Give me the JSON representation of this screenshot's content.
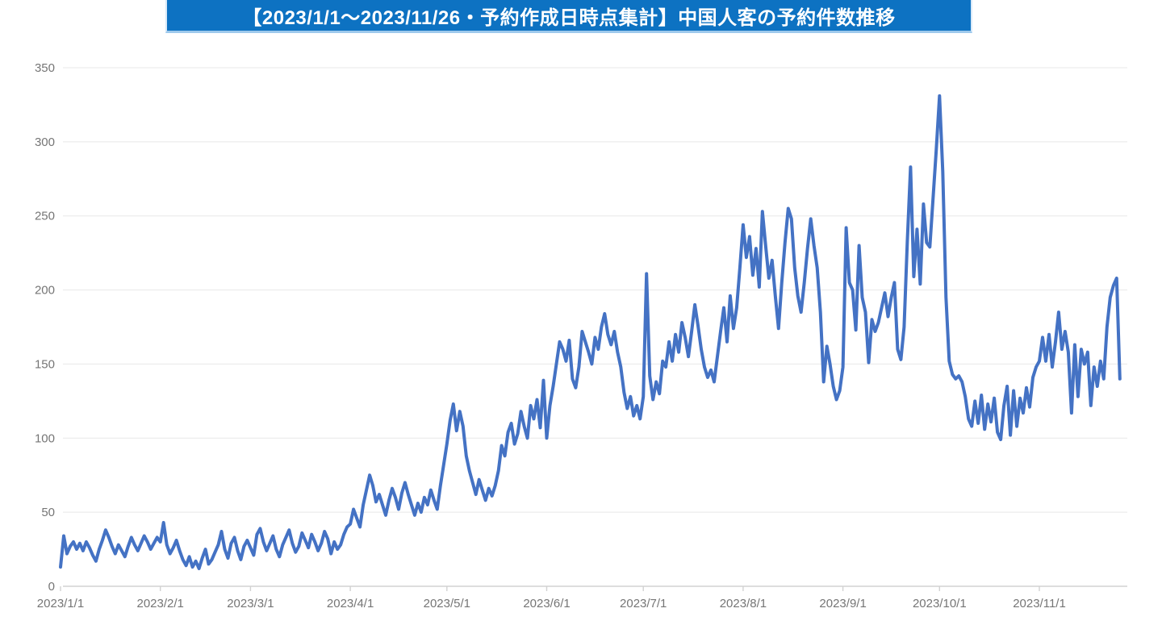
{
  "title": {
    "text": "【2023/1/1～2023/11/26・予約作成日時点集計】中国人客の予約件数推移"
  },
  "colors": {
    "banner_bg": "#0d72c2",
    "banner_text": "#ffffff",
    "series_line": "#4472c4",
    "gridline": "#e8e8e8",
    "axis_line": "#d2d2d2",
    "tick_label": "#757575"
  },
  "chart_data": {
    "type": "line",
    "title": "【2023/1/1～2023/11/26・予約作成日時点集計】中国人客の予約件数推移",
    "xlabel": "",
    "ylabel": "",
    "ylim": [
      0,
      350
    ],
    "y_ticks": [
      0,
      50,
      100,
      150,
      200,
      250,
      300,
      350
    ],
    "grid": "horizontal",
    "legend": "none",
    "x_ticks": [
      {
        "label": "2023/1/1",
        "day": 0
      },
      {
        "label": "2023/2/1",
        "day": 31
      },
      {
        "label": "2023/3/1",
        "day": 59
      },
      {
        "label": "2023/4/1",
        "day": 90
      },
      {
        "label": "2023/5/1",
        "day": 120
      },
      {
        "label": "2023/6/1",
        "day": 151
      },
      {
        "label": "2023/7/1",
        "day": 181
      },
      {
        "label": "2023/8/1",
        "day": 212
      },
      {
        "label": "2023/9/1",
        "day": 243
      },
      {
        "label": "2023/10/1",
        "day": 273
      },
      {
        "label": "2023/11/1",
        "day": 304
      }
    ],
    "x_axis_span_days_per_label_unit": 304,
    "series": [
      {
        "name": "中国人客の予約件数",
        "start_date": "2023/1/1",
        "end_date": "2023/11/26",
        "interval": "daily",
        "values": [
          13,
          34,
          22,
          27,
          30,
          25,
          29,
          24,
          30,
          26,
          21,
          17,
          25,
          31,
          38,
          33,
          27,
          22,
          28,
          24,
          20,
          27,
          33,
          28,
          24,
          29,
          34,
          30,
          25,
          29,
          33,
          30,
          43,
          28,
          22,
          26,
          31,
          24,
          18,
          14,
          20,
          13,
          17,
          12,
          19,
          25,
          15,
          18,
          23,
          28,
          37,
          25,
          19,
          29,
          33,
          24,
          18,
          27,
          31,
          26,
          21,
          35,
          39,
          30,
          24,
          29,
          34,
          25,
          20,
          28,
          33,
          38,
          29,
          23,
          27,
          36,
          31,
          26,
          35,
          30,
          24,
          29,
          37,
          32,
          22,
          30,
          25,
          28,
          35,
          40,
          42,
          52,
          46,
          40,
          55,
          65,
          75,
          68,
          57,
          62,
          55,
          48,
          58,
          66,
          60,
          52,
          63,
          70,
          62,
          55,
          48,
          56,
          50,
          60,
          55,
          65,
          58,
          52,
          68,
          82,
          96,
          112,
          123,
          105,
          118,
          108,
          88,
          78,
          70,
          62,
          72,
          65,
          58,
          66,
          61,
          68,
          78,
          95,
          88,
          104,
          110,
          96,
          103,
          118,
          108,
          100,
          122,
          113,
          126,
          107,
          139,
          100,
          122,
          135,
          150,
          165,
          160,
          152,
          166,
          140,
          134,
          148,
          172,
          165,
          158,
          150,
          168,
          160,
          175,
          184,
          170,
          163,
          172,
          158,
          148,
          131,
          120,
          128,
          115,
          122,
          113,
          128,
          211,
          142,
          126,
          138,
          130,
          152,
          148,
          165,
          152,
          170,
          158,
          178,
          168,
          155,
          172,
          190,
          176,
          160,
          148,
          141,
          146,
          138,
          155,
          172,
          188,
          165,
          196,
          174,
          188,
          215,
          244,
          222,
          236,
          210,
          228,
          202,
          253,
          230,
          208,
          220,
          196,
          174,
          205,
          232,
          255,
          248,
          215,
          196,
          185,
          205,
          228,
          248,
          230,
          215,
          185,
          138,
          162,
          150,
          135,
          126,
          132,
          148,
          242,
          205,
          200,
          173,
          230,
          195,
          185,
          151,
          180,
          172,
          178,
          188,
          198,
          182,
          195,
          205,
          160,
          153,
          175,
          233,
          283,
          209,
          241,
          204,
          258,
          232,
          229,
          262,
          295,
          331,
          280,
          195,
          152,
          143,
          140,
          142,
          138,
          128,
          113,
          108,
          125,
          110,
          129,
          106,
          123,
          111,
          127,
          104,
          99,
          122,
          135,
          102,
          132,
          108,
          127,
          117,
          134,
          121,
          141,
          148,
          152,
          168,
          152,
          170,
          148,
          165,
          185,
          160,
          172,
          158,
          117,
          163,
          128,
          160,
          150,
          158,
          122,
          148,
          135,
          152,
          140,
          175,
          195,
          203,
          208,
          140
        ]
      }
    ]
  }
}
